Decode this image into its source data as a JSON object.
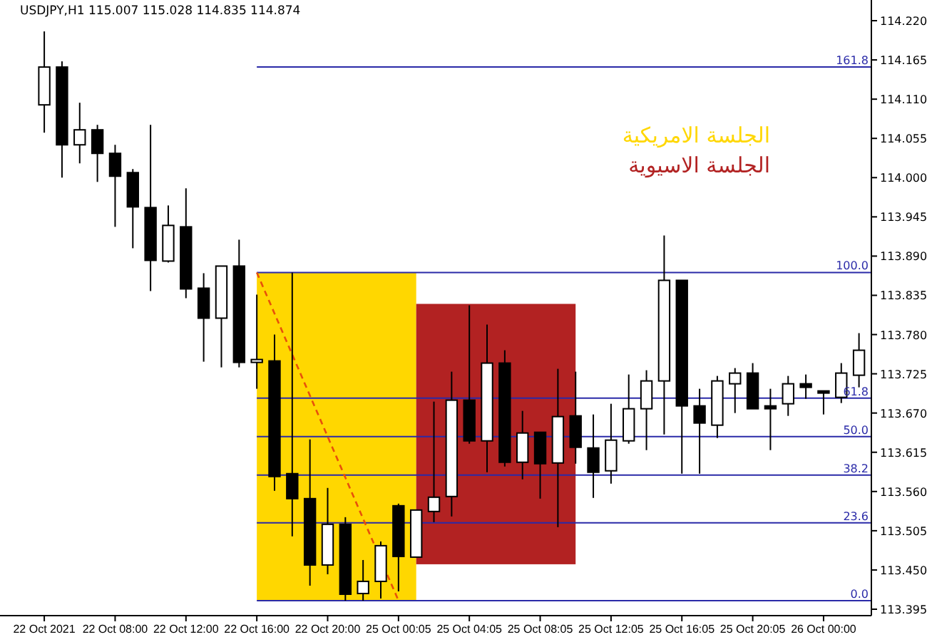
{
  "chart_data": {
    "type": "candlestick",
    "title": "USDJPY,H1 115.007 115.028 114.835 114.874",
    "categories": [
      "22 Oct 2021",
      null,
      null,
      null,
      "22 Oct 08:00",
      null,
      null,
      null,
      "22 Oct 12:00",
      null,
      null,
      null,
      "22 Oct 16:00",
      null,
      null,
      null,
      "22 Oct 20:00",
      null,
      null,
      null,
      "25 Oct 00:05",
      null,
      null,
      null,
      "25 Oct 04:05",
      null,
      null,
      null,
      "25 Oct 08:05",
      null,
      null,
      null,
      "25 Oct 12:05",
      null,
      null,
      null,
      "25 Oct 16:05",
      null,
      null,
      null,
      "25 Oct 20:05",
      null,
      null,
      null,
      "26 Oct 00:00",
      null,
      null
    ],
    "ohlc": [
      [
        114.102,
        114.205,
        114.063,
        114.155
      ],
      [
        114.155,
        114.163,
        114.0,
        114.046
      ],
      [
        114.046,
        114.105,
        114.02,
        114.067
      ],
      [
        114.067,
        114.074,
        113.994,
        114.034
      ],
      [
        114.034,
        114.046,
        113.931,
        114.002
      ],
      [
        114.007,
        114.012,
        113.901,
        113.959
      ],
      [
        113.958,
        114.074,
        113.841,
        113.884
      ],
      [
        113.883,
        113.961,
        113.881,
        113.933
      ],
      [
        113.931,
        113.985,
        113.831,
        113.844
      ],
      [
        113.845,
        113.866,
        113.742,
        113.803
      ],
      [
        113.803,
        113.876,
        113.734,
        113.876
      ],
      [
        113.876,
        113.913,
        113.734,
        113.741
      ],
      [
        113.741,
        113.836,
        113.704,
        113.745
      ],
      [
        113.743,
        113.78,
        113.561,
        113.581
      ],
      [
        113.585,
        113.867,
        113.497,
        113.55
      ],
      [
        113.55,
        113.633,
        113.428,
        113.457
      ],
      [
        113.457,
        113.565,
        113.444,
        113.514
      ],
      [
        113.514,
        113.524,
        113.407,
        113.416
      ],
      [
        113.417,
        113.464,
        113.407,
        113.434
      ],
      [
        113.434,
        113.49,
        113.41,
        113.484
      ],
      [
        113.54,
        113.543,
        113.42,
        113.469
      ],
      [
        113.468,
        113.534,
        113.468,
        113.534
      ],
      [
        113.532,
        113.686,
        113.517,
        113.552
      ],
      [
        113.553,
        113.728,
        113.525,
        113.688
      ],
      [
        113.688,
        113.821,
        113.627,
        113.631
      ],
      [
        113.631,
        113.794,
        113.587,
        113.74
      ],
      [
        113.74,
        113.758,
        113.595,
        113.601
      ],
      [
        113.601,
        113.673,
        113.577,
        113.642
      ],
      [
        113.643,
        113.643,
        113.55,
        113.599
      ],
      [
        113.6,
        113.732,
        113.51,
        113.665
      ],
      [
        113.666,
        113.728,
        113.599,
        113.622
      ],
      [
        113.621,
        113.668,
        113.551,
        113.587
      ],
      [
        113.589,
        113.683,
        113.571,
        113.632
      ],
      [
        113.631,
        113.724,
        113.627,
        113.676
      ],
      [
        113.676,
        113.73,
        113.618,
        113.715
      ],
      [
        113.715,
        113.919,
        113.64,
        113.856
      ],
      [
        113.856,
        113.856,
        113.585,
        113.68
      ],
      [
        113.68,
        113.704,
        113.585,
        113.656
      ],
      [
        113.653,
        113.722,
        113.635,
        113.715
      ],
      [
        113.711,
        113.733,
        113.67,
        113.726
      ],
      [
        113.726,
        113.74,
        113.676,
        113.676
      ],
      [
        113.68,
        113.704,
        113.618,
        113.676
      ],
      [
        113.683,
        113.722,
        113.666,
        113.711
      ],
      [
        113.711,
        113.724,
        113.69,
        113.706
      ],
      [
        113.701,
        113.701,
        113.668,
        113.698
      ],
      [
        113.692,
        113.74,
        113.684,
        113.726
      ],
      [
        113.723,
        113.782,
        113.706,
        113.758
      ]
    ],
    "ylim": [
      113.386,
      114.249
    ],
    "yticks": [
      {
        "value": 113.395,
        "label": "113.395"
      },
      {
        "value": 113.45,
        "label": "113.450"
      },
      {
        "value": 113.505,
        "label": "113.505"
      },
      {
        "value": 113.56,
        "label": "113.560"
      },
      {
        "value": 113.615,
        "label": "113.615"
      },
      {
        "value": 113.67,
        "label": "113.670"
      },
      {
        "value": 113.725,
        "label": "113.725"
      },
      {
        "value": 113.78,
        "label": "113.780"
      },
      {
        "value": 113.835,
        "label": "113.835"
      },
      {
        "value": 113.89,
        "label": "113.890"
      },
      {
        "value": 113.945,
        "label": "113.945"
      },
      {
        "value": 114.0,
        "label": "114.000"
      },
      {
        "value": 114.055,
        "label": "114.055"
      },
      {
        "value": 114.11,
        "label": "114.110"
      },
      {
        "value": 114.165,
        "label": "114.165"
      },
      {
        "value": 114.22,
        "label": "114.220"
      }
    ],
    "series": [
      {
        "type": "line",
        "x": [
          "22 Oct 16:00",
          "25 Oct 00:05"
        ],
        "values": [
          113.867,
          113.407
        ],
        "color": "#e8500a",
        "line_style": "dashed"
      }
    ],
    "bands": [
      {
        "axis": "y",
        "from": 113.407,
        "to": 113.867,
        "label": "الجلسة الامريكية",
        "color": "#ffd700"
      },
      {
        "axis": "y",
        "from": 113.458,
        "to": 113.823,
        "label": "الجلسة الاسيوية",
        "color": "#b22222"
      }
    ],
    "ref_lines": [
      {
        "axis": "y",
        "value": 113.407,
        "color": "#2a2aa8"
      },
      {
        "axis": "y",
        "value": 113.516,
        "color": "#2a2aa8"
      },
      {
        "axis": "y",
        "value": 113.583,
        "color": "#2a2aa8"
      },
      {
        "axis": "y",
        "value": 113.637,
        "color": "#2a2aa8"
      },
      {
        "axis": "y",
        "value": 113.691,
        "color": "#2a2aa8"
      },
      {
        "axis": "y",
        "value": 113.867,
        "color": "#2a2aa8"
      },
      {
        "axis": "y",
        "value": 114.155,
        "color": "#2a2aa8"
      }
    ],
    "annotations": [
      {
        "text": "0.0",
        "y": 113.407
      },
      {
        "text": "23.6",
        "y": 113.516
      },
      {
        "text": "38.2",
        "y": 113.583
      },
      {
        "text": "50.0",
        "y": 113.637
      },
      {
        "text": "61.8",
        "y": 113.691
      },
      {
        "text": "100.0",
        "y": 113.867
      },
      {
        "text": "161.8",
        "y": 114.155
      }
    ]
  }
}
